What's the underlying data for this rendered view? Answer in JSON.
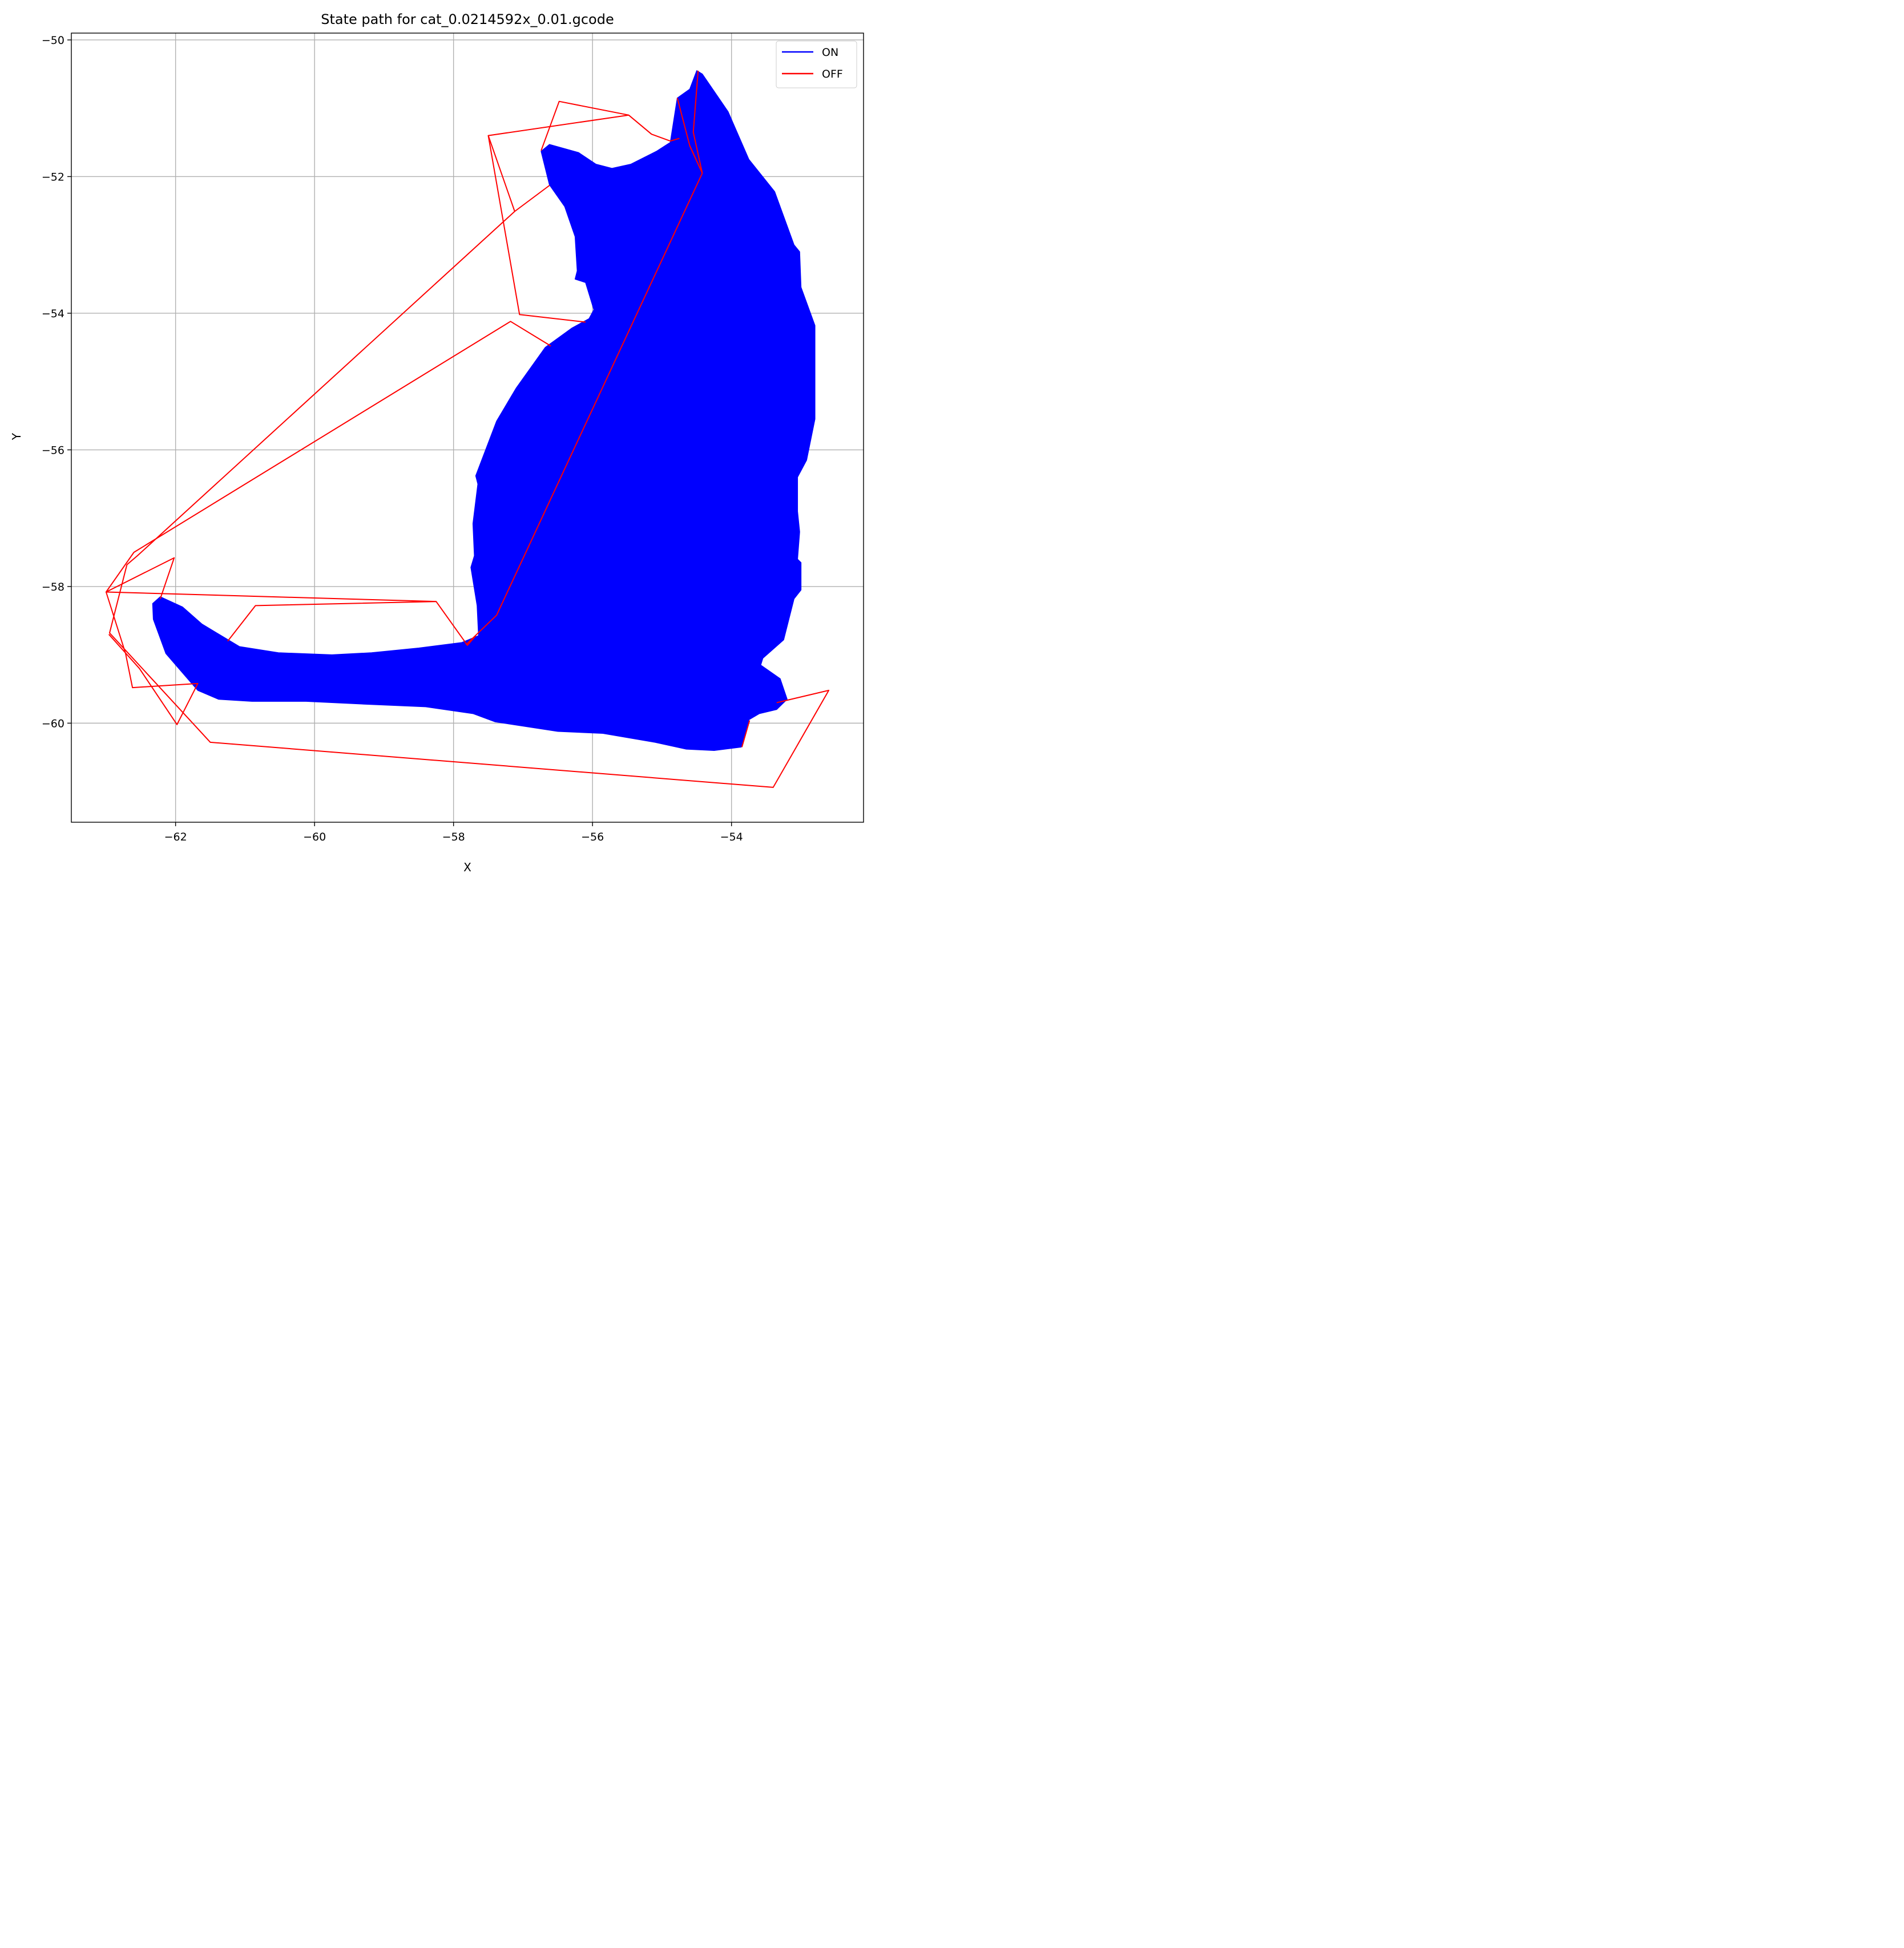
{
  "chart_data": {
    "type": "line",
    "title": "State path for cat_0.0214592x_0.01.gcode",
    "xlabel": "X",
    "ylabel": "Y",
    "xlim": [
      -63.5,
      -52.1
    ],
    "ylim": [
      -61.45,
      -49.9
    ],
    "grid": true,
    "legend_position": "top-right",
    "x_ticks": [
      -62,
      -60,
      -58,
      -56,
      -54
    ],
    "y_ticks": [
      -50,
      -52,
      -54,
      -56,
      -58,
      -60
    ],
    "x_tick_labels": [
      "−62",
      "−60",
      "−58",
      "−56",
      "−54"
    ],
    "y_tick_labels": [
      "−50",
      "−52",
      "−54",
      "−56",
      "−58",
      "−60"
    ],
    "series": [
      {
        "name": "ON",
        "color": "#0000ff",
        "style": "filled",
        "points": [
          [
            -56.74,
            -51.63
          ],
          [
            -56.62,
            -51.53
          ],
          [
            -56.2,
            -51.65
          ],
          [
            -55.95,
            -51.82
          ],
          [
            -55.72,
            -51.88
          ],
          [
            -55.45,
            -51.82
          ],
          [
            -55.08,
            -51.63
          ],
          [
            -54.88,
            -51.5
          ],
          [
            -54.78,
            -50.85
          ],
          [
            -54.6,
            -50.72
          ],
          [
            -54.5,
            -50.45
          ],
          [
            -54.42,
            -50.5
          ],
          [
            -54.05,
            -51.05
          ],
          [
            -53.75,
            -51.75
          ],
          [
            -53.38,
            -52.22
          ],
          [
            -53.1,
            -53.0
          ],
          [
            -53.02,
            -53.1
          ],
          [
            -53.0,
            -53.62
          ],
          [
            -52.8,
            -54.18
          ],
          [
            -52.8,
            -55.55
          ],
          [
            -52.92,
            -56.15
          ],
          [
            -53.05,
            -56.4
          ],
          [
            -53.05,
            -56.9
          ],
          [
            -53.02,
            -57.2
          ],
          [
            -53.05,
            -57.6
          ],
          [
            -53.0,
            -57.65
          ],
          [
            -53.0,
            -58.05
          ],
          [
            -53.1,
            -58.18
          ],
          [
            -53.25,
            -58.78
          ],
          [
            -53.55,
            -59.05
          ],
          [
            -53.58,
            -59.15
          ],
          [
            -53.3,
            -59.35
          ],
          [
            -53.2,
            -59.65
          ],
          [
            -53.35,
            -59.8
          ],
          [
            -53.6,
            -59.86
          ],
          [
            -53.75,
            -59.95
          ],
          [
            -53.86,
            -60.35
          ],
          [
            -54.25,
            -60.4
          ],
          [
            -54.65,
            -60.38
          ],
          [
            -55.1,
            -60.28
          ],
          [
            -55.85,
            -60.15
          ],
          [
            -56.5,
            -60.12
          ],
          [
            -57.4,
            -59.98
          ],
          [
            -57.72,
            -59.86
          ],
          [
            -58.4,
            -59.76
          ],
          [
            -59.32,
            -59.72
          ],
          [
            -60.12,
            -59.68
          ],
          [
            -60.9,
            -59.68
          ],
          [
            -61.38,
            -59.65
          ],
          [
            -61.68,
            -59.52
          ],
          [
            -61.8,
            -59.38
          ],
          [
            -62.14,
            -58.98
          ],
          [
            -62.32,
            -58.48
          ],
          [
            -62.33,
            -58.25
          ],
          [
            -62.22,
            -58.15
          ],
          [
            -61.9,
            -58.3
          ],
          [
            -61.62,
            -58.55
          ],
          [
            -61.08,
            -58.88
          ],
          [
            -60.52,
            -58.97
          ],
          [
            -59.75,
            -59.0
          ],
          [
            -59.18,
            -58.97
          ],
          [
            -58.5,
            -58.9
          ],
          [
            -57.88,
            -58.82
          ],
          [
            -57.64,
            -58.72
          ],
          [
            -57.66,
            -58.28
          ],
          [
            -57.75,
            -57.72
          ],
          [
            -57.7,
            -57.55
          ],
          [
            -57.72,
            -57.08
          ],
          [
            -57.65,
            -56.5
          ],
          [
            -57.68,
            -56.38
          ],
          [
            -57.38,
            -55.58
          ],
          [
            -57.1,
            -55.1
          ],
          [
            -56.68,
            -54.5
          ],
          [
            -56.3,
            -54.22
          ],
          [
            -56.05,
            -54.08
          ],
          [
            -55.98,
            -53.95
          ],
          [
            -56.1,
            -53.55
          ],
          [
            -56.25,
            -53.5
          ],
          [
            -56.22,
            -53.38
          ],
          [
            -56.25,
            -52.88
          ],
          [
            -56.4,
            -52.44
          ],
          [
            -56.62,
            -52.12
          ]
        ]
      },
      {
        "name": "OFF",
        "color": "#ff0000",
        "style": "line",
        "segments": [
          [
            [
              -56.74,
              -51.62
            ],
            [
              -56.48,
              -50.9
            ],
            [
              -55.48,
              -51.1
            ],
            [
              -55.15,
              -51.38
            ],
            [
              -54.88,
              -51.48
            ],
            [
              -54.75,
              -51.44
            ]
          ],
          [
            [
              -55.48,
              -51.1
            ],
            [
              -57.5,
              -51.4
            ],
            [
              -57.12,
              -52.51
            ],
            [
              -62.55,
              -57.55
            ],
            [
              -62.7,
              -57.68
            ],
            [
              -62.95,
              -58.68
            ],
            [
              -61.5,
              -60.28
            ],
            [
              -53.4,
              -60.94
            ],
            [
              -52.6,
              -59.52
            ],
            [
              -53.35,
              -59.7
            ]
          ],
          [
            [
              -53.85,
              -60.35
            ],
            [
              -53.74,
              -59.96
            ]
          ],
          [
            [
              -57.12,
              -52.51
            ],
            [
              -56.62,
              -52.13
            ]
          ],
          [
            [
              -57.5,
              -51.4
            ],
            [
              -57.05,
              -54.02
            ],
            [
              -56.1,
              -54.13
            ]
          ],
          [
            [
              -56.6,
              -54.48
            ],
            [
              -57.18,
              -54.12
            ],
            [
              -62.6,
              -57.5
            ],
            [
              -63.0,
              -58.08
            ],
            [
              -58.25,
              -58.22
            ],
            [
              -57.8,
              -58.86
            ],
            [
              -57.68,
              -58.72
            ]
          ],
          [
            [
              -58.25,
              -58.22
            ],
            [
              -60.85,
              -58.28
            ],
            [
              -61.25,
              -58.8
            ]
          ],
          [
            [
              -63.0,
              -58.08
            ],
            [
              -62.72,
              -58.98
            ],
            [
              -62.62,
              -59.48
            ],
            [
              -61.68,
              -59.42
            ],
            [
              -61.98,
              -60.02
            ],
            [
              -62.52,
              -59.2
            ],
            [
              -62.96,
              -58.7
            ]
          ],
          [
            [
              -62.22,
              -58.18
            ],
            [
              -62.02,
              -57.58
            ],
            [
              -63.0,
              -58.08
            ]
          ],
          [
            [
              -57.82,
              -58.85
            ],
            [
              -57.38,
              -58.42
            ],
            [
              -54.42,
              -51.95
            ],
            [
              -54.6,
              -51.55
            ],
            [
              -54.78,
              -50.85
            ]
          ],
          [
            [
              -54.6,
              -51.55
            ],
            [
              -54.42,
              -51.95
            ],
            [
              -54.55,
              -51.35
            ],
            [
              -54.48,
              -50.45
            ]
          ]
        ]
      }
    ]
  }
}
